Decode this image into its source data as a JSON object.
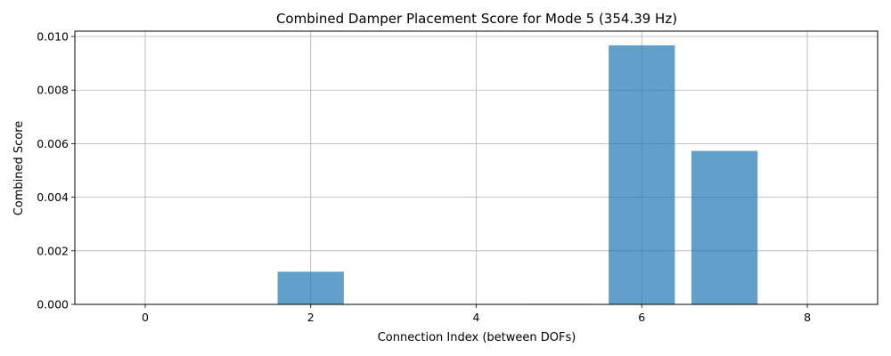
{
  "chart_data": {
    "type": "bar",
    "title": "Combined Damper Placement Score for Mode 5 (354.39 Hz)",
    "xlabel": "Connection Index (between DOFs)",
    "ylabel": "Combined Score",
    "categories": [
      0,
      1,
      2,
      3,
      4,
      5,
      6,
      7,
      8
    ],
    "values": [
      0.0,
      0.0,
      0.00122,
      0.0,
      0.0,
      2e-05,
      0.00967,
      0.00573,
      0.0
    ],
    "xlim": [
      -0.85,
      8.85
    ],
    "ylim": [
      0,
      0.0102
    ],
    "x_ticks": [
      0,
      2,
      4,
      6,
      8
    ],
    "x_tick_labels": [
      "0",
      "2",
      "4",
      "6",
      "8"
    ],
    "y_ticks": [
      0,
      0.002,
      0.004,
      0.006,
      0.008,
      0.01
    ],
    "y_tick_labels": [
      "0.000",
      "0.002",
      "0.004",
      "0.006",
      "0.008",
      "0.010"
    ],
    "grid": true,
    "bar_color": "#1f77b4",
    "bar_opacity": 0.7
  }
}
